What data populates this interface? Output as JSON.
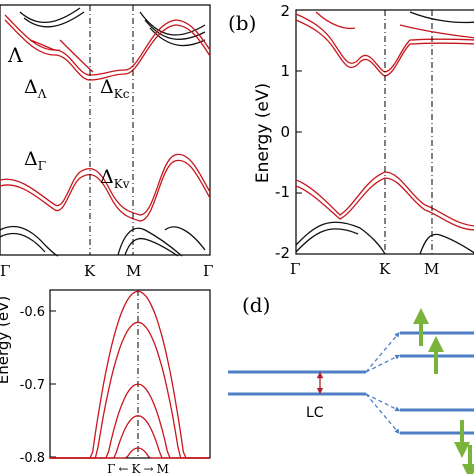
{
  "colors": {
    "red": "#c8161d",
    "black": "#111111",
    "blue": "#4e7fc4",
    "green": "#7ab33c",
    "darkred": "#b0202c"
  },
  "chart_data": [
    {
      "id": "a",
      "type": "line",
      "panel_label": "",
      "ylim": [
        -2,
        2
      ],
      "kpath_labels": [
        "Γ",
        "K",
        "M",
        "Γ"
      ],
      "annotations": [
        "Λ",
        "Δ",
        "Λ",
        "Δ",
        "Kc",
        "Δ",
        "Γ",
        "Δ",
        "Kv"
      ],
      "red_bands": [
        {
          "name": "",
          "values": [
            1.75,
            1.55,
            1.05,
            0.45,
            0.82,
            1.15,
            1.7
          ]
        },
        {
          "name": "",
          "values": [
            1.68,
            1.45,
            0.98,
            0.4,
            0.76,
            1.08,
            1.6
          ]
        },
        {
          "name": "",
          "values": [
            -0.65,
            -1.0,
            -0.6,
            -0.82,
            -1.3,
            -1.1,
            -0.8
          ]
        },
        {
          "name": "",
          "values": [
            -0.7,
            -1.05,
            -0.65,
            -0.87,
            -1.35,
            -1.15,
            -0.85
          ]
        }
      ]
    },
    {
      "id": "b",
      "type": "line",
      "panel_label": "(b)",
      "ylabel": "Energy (eV)",
      "yticks": [
        "-2",
        "-1",
        "0",
        "1",
        "2"
      ],
      "ylim": [
        -2,
        2
      ],
      "kpath_labels": [
        "Γ",
        "K",
        "M"
      ],
      "red_bands": [
        {
          "name": "",
          "values": [
            1.85,
            1.35,
            1.0,
            1.5,
            1.55
          ]
        },
        {
          "name": "",
          "values": [
            1.78,
            1.3,
            0.97,
            1.45,
            1.5
          ]
        },
        {
          "name": "",
          "values": [
            -0.8,
            -1.4,
            -0.65,
            -1.0,
            -1.45
          ]
        },
        {
          "name": "",
          "values": [
            -0.86,
            -1.45,
            -0.7,
            -1.05,
            -1.5
          ]
        }
      ]
    },
    {
      "id": "c",
      "type": "line",
      "panel_label": "",
      "ylabel": "Energy (eV)",
      "yticks": [
        "-0.8",
        "-0.7",
        "-0.6"
      ],
      "ylim": [
        -0.8,
        -0.55
      ],
      "xlabel_parts": [
        "Γ",
        "←",
        "K",
        "→",
        "M"
      ],
      "bands_peak": [
        -0.552,
        -0.598,
        -0.69,
        -0.737,
        -0.785
      ]
    },
    {
      "id": "d",
      "type": "diagram",
      "panel_label": "(d)",
      "label_lc": "LC"
    }
  ]
}
